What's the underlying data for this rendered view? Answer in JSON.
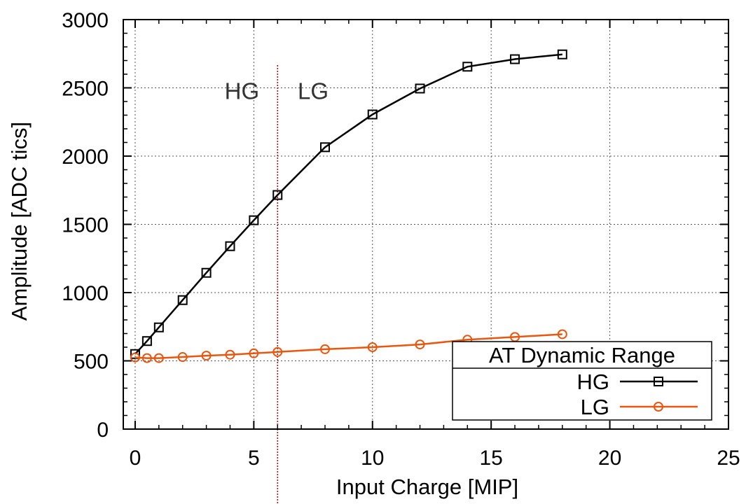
{
  "chart_data": {
    "type": "line",
    "title": "",
    "xlabel": "Input Charge [MIP]",
    "ylabel": "Amplitude [ADC tics]",
    "xlim": [
      -0.5,
      25
    ],
    "ylim": [
      0,
      3000
    ],
    "xticks": [
      0,
      5,
      10,
      15,
      20,
      25
    ],
    "yticks": [
      0,
      500,
      1000,
      1500,
      2000,
      2500,
      3000
    ],
    "grid": true,
    "legend": {
      "title": "AT Dynamic Range",
      "placement": "bottom-right"
    },
    "annotations": [
      {
        "text": "HG",
        "x": 4.5,
        "y": 2480
      },
      {
        "text": "LG",
        "x": 7.5,
        "y": 2480
      }
    ],
    "vline": {
      "x": 6,
      "color": "#cc0000",
      "style": "dotted"
    },
    "series": [
      {
        "name": "HG",
        "color": "#000000",
        "marker": "square",
        "x": [
          0,
          0.5,
          1,
          2,
          3,
          4,
          5,
          6,
          8,
          10,
          12,
          14,
          16,
          18
        ],
        "y": [
          550,
          645,
          745,
          945,
          1145,
          1340,
          1530,
          1715,
          2065,
          2305,
          2495,
          2655,
          2710,
          2745
        ]
      },
      {
        "name": "LG",
        "color": "#e8560f",
        "marker": "circle",
        "x": [
          0,
          0.5,
          1,
          2,
          3,
          4,
          5,
          6,
          8,
          10,
          12,
          14,
          16,
          18
        ],
        "y": [
          525,
          520,
          520,
          528,
          538,
          545,
          555,
          565,
          585,
          600,
          620,
          655,
          675,
          695
        ]
      }
    ]
  }
}
